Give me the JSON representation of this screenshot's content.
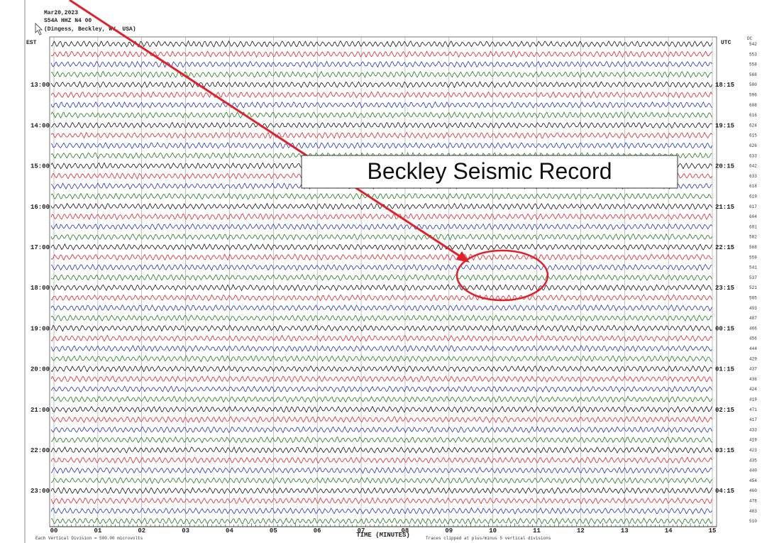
{
  "header": {
    "date": "Mar20,2023",
    "station": "S54A HHZ N4 00",
    "location": "(Dingess, Beckley, WV, USA)"
  },
  "left_axis": {
    "title": "EST",
    "labels": [
      "13:00",
      "14:00",
      "15:00",
      "16:00",
      "17:00",
      "18:00",
      "19:00",
      "20:00",
      "21:00",
      "22:00",
      "23:00"
    ]
  },
  "right_axis": {
    "title": "UTC",
    "labels": [
      "18:15",
      "19:15",
      "20:15",
      "21:15",
      "22:15",
      "23:15",
      "00:15",
      "01:15",
      "02:15",
      "03:15",
      "04:15"
    ]
  },
  "dc": {
    "title": "DC",
    "values": [
      "542",
      "553",
      "558",
      "568",
      "580",
      "596",
      "608",
      "616",
      "624",
      "615",
      "626",
      "633",
      "642",
      "633",
      "618",
      "619",
      "617",
      "604",
      "601",
      "582",
      "568",
      "559",
      "541",
      "537",
      "521",
      "505",
      "493",
      "487",
      "466",
      "456",
      "444",
      "429",
      "437",
      "436",
      "424",
      "419",
      "471",
      "417",
      "433",
      "419",
      "423",
      "435",
      "440",
      "454",
      "460",
      "478",
      "483",
      "510"
    ]
  },
  "x_axis": {
    "ticks": [
      "00",
      "01",
      "02",
      "03",
      "04",
      "05",
      "06",
      "07",
      "08",
      "09",
      "10",
      "11",
      "12",
      "13",
      "14",
      "15"
    ],
    "title": "TIME (MINUTES)"
  },
  "footer": {
    "scale": "Each Vertical Division = 500.00 microvolts",
    "clip": "Traces clipped at plus/minus 5 vertical divisions"
  },
  "annotation": "Beckley Seismic Record"
}
